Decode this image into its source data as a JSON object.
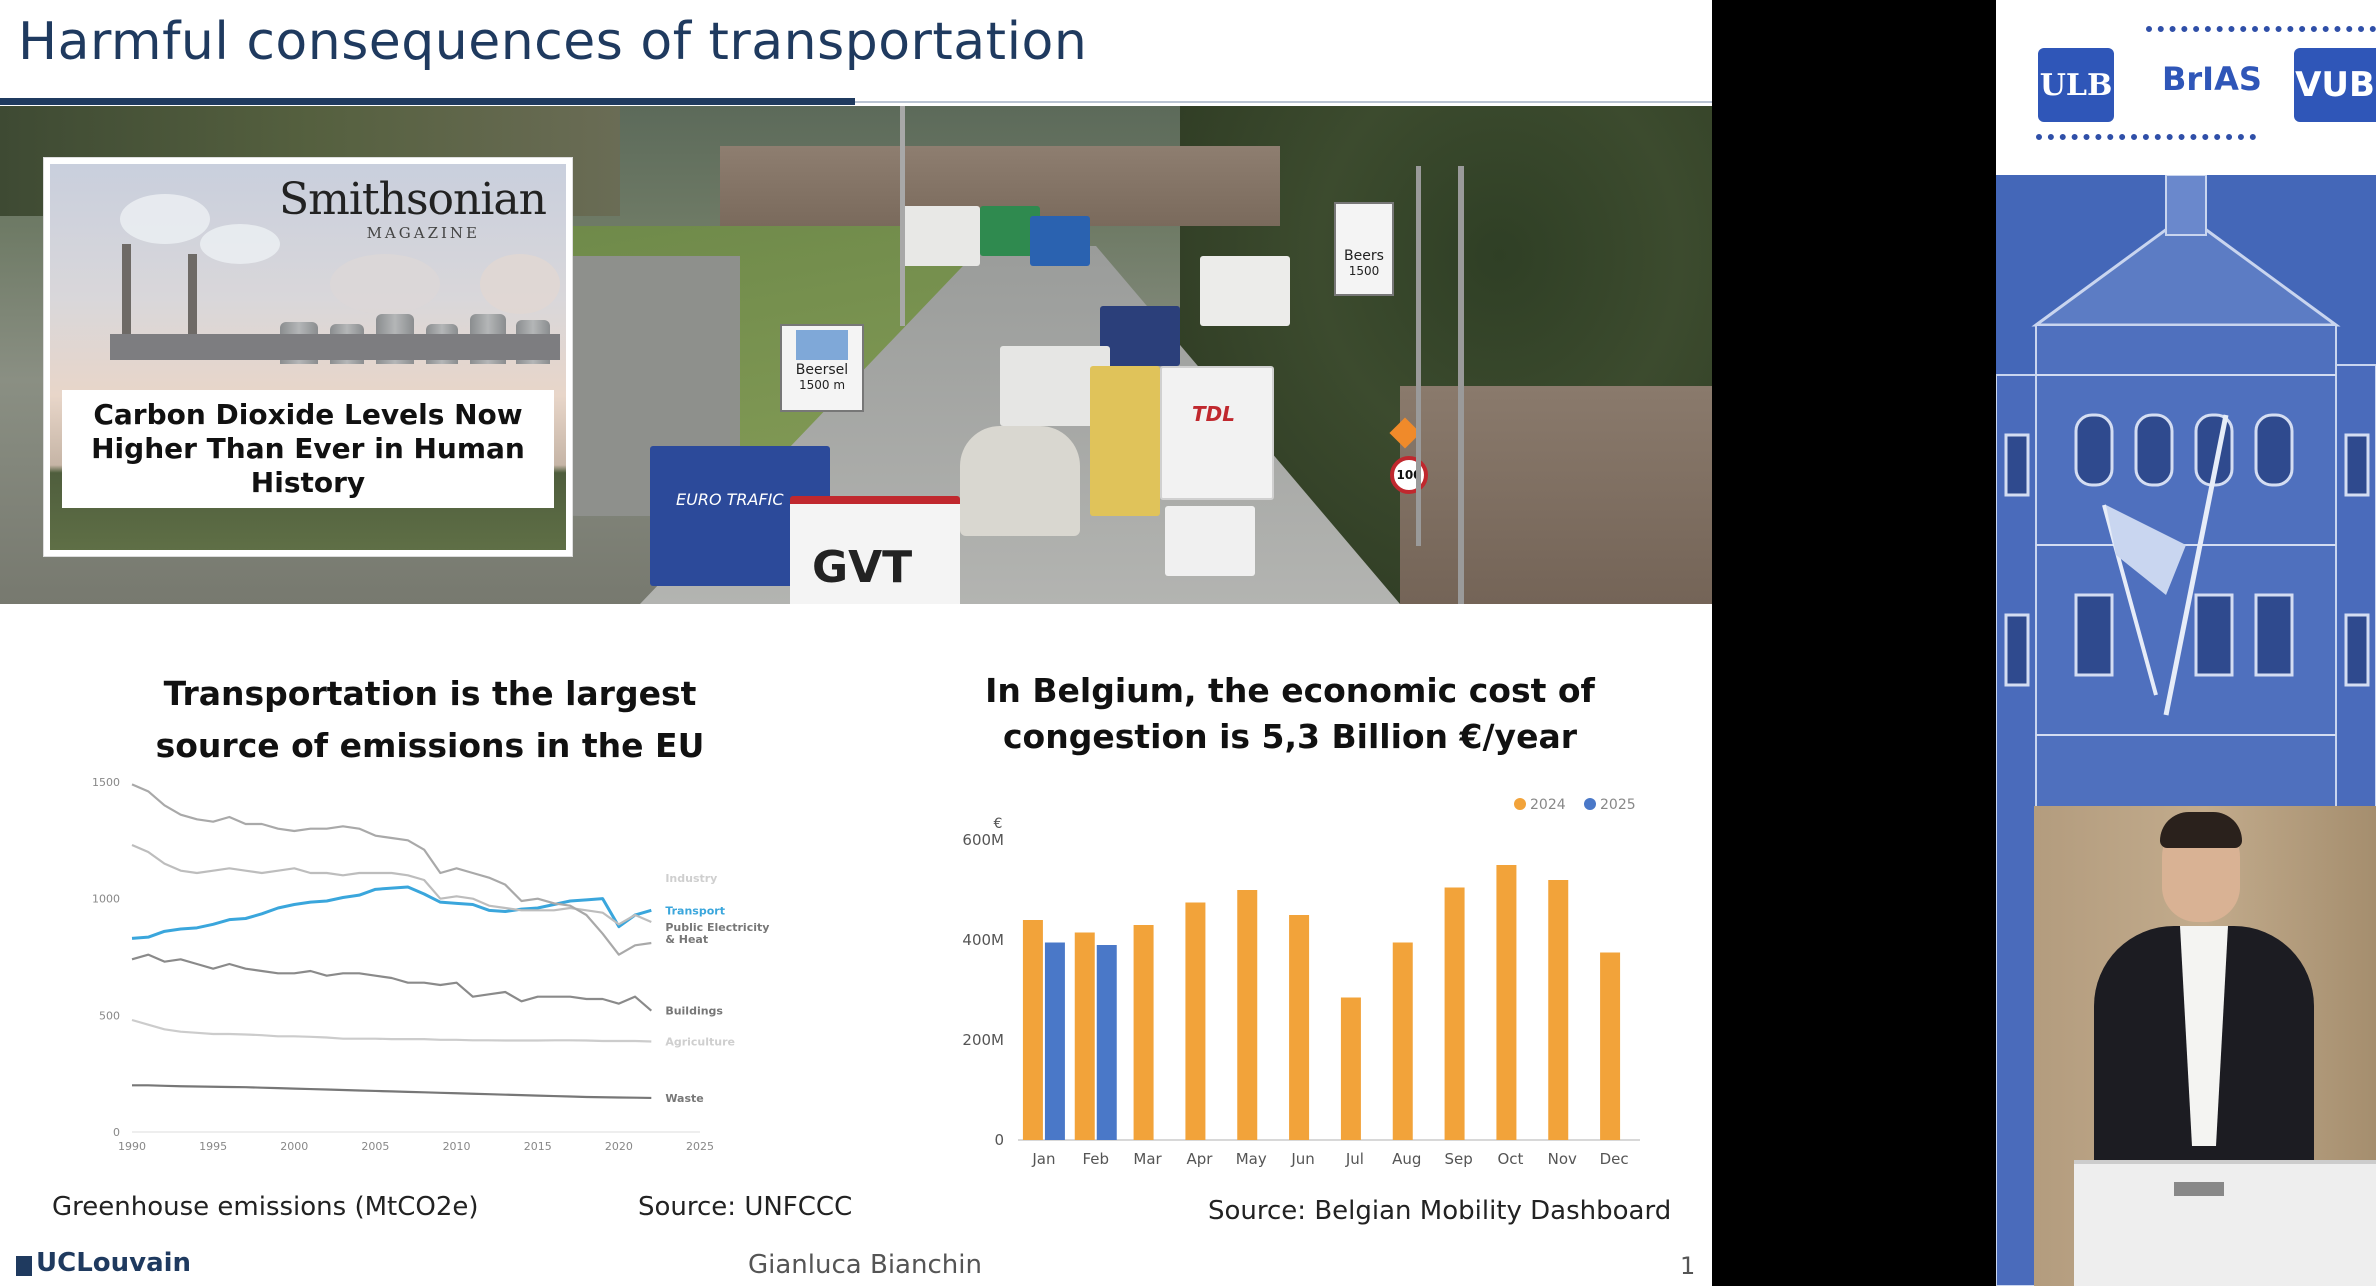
{
  "slide": {
    "title": "Harmful consequences of transportation",
    "article": {
      "publisher": "Smithsonian",
      "publisher_sub": "MAGAZINE",
      "headline": "Carbon Dioxide Levels Now Higher Than Ever in Human History"
    },
    "road_signs": {
      "sign1_line1": "Beersel",
      "sign1_line2": "1500 m",
      "sign2_line1": "Beers",
      "sign2_line2": "1500",
      "speed": "100",
      "truck1": "EURO TRAFIC",
      "truck2": "GVT",
      "truck3": "TDL"
    },
    "left_heading": "Transportation is the largest source of emissions in the EU",
    "right_heading": "In Belgium, the economic cost of congestion is 5,3 Billion €/year",
    "left_caption": "Greenhouse emissions (MtCO2e)",
    "left_source": "Source: UNFCCC",
    "right_source": "Source: Belgian Mobility Dashboard",
    "footer": {
      "institution": "UCLouvain",
      "presenter": "Gianluca Bianchin",
      "page": "1"
    }
  },
  "chart_data": [
    {
      "type": "line",
      "x": [
        1990,
        1991,
        1992,
        1993,
        1994,
        1995,
        1996,
        1997,
        1998,
        1999,
        2000,
        2001,
        2002,
        2003,
        2004,
        2005,
        2006,
        2007,
        2008,
        2009,
        2010,
        2011,
        2012,
        2013,
        2014,
        2015,
        2016,
        2017,
        2018,
        2019,
        2020,
        2021,
        2022
      ],
      "xticks": [
        "1990",
        "1995",
        "2000",
        "2005",
        "2010",
        "2015",
        "2020",
        "2025"
      ],
      "yticks": [
        "0",
        "500",
        "1000",
        "1500"
      ],
      "ylim": [
        0,
        1500
      ],
      "xlim": [
        1990,
        2025
      ],
      "series": [
        {
          "name": "Transport",
          "color": "#3aa6dc",
          "values": [
            830,
            835,
            860,
            870,
            875,
            890,
            910,
            915,
            935,
            960,
            975,
            985,
            990,
            1005,
            1015,
            1040,
            1045,
            1050,
            1020,
            985,
            980,
            975,
            950,
            945,
            955,
            960,
            975,
            990,
            995,
            1000,
            880,
            930,
            950
          ]
        },
        {
          "name": "Industry",
          "color": "#bdbdbd",
          "values": [
            1230,
            1200,
            1150,
            1120,
            1110,
            1120,
            1130,
            1120,
            1110,
            1120,
            1130,
            1110,
            1110,
            1100,
            1110,
            1110,
            1110,
            1100,
            1080,
            1000,
            1010,
            1000,
            970,
            960,
            950,
            950,
            950,
            960,
            950,
            940,
            890,
            930,
            900
          ]
        },
        {
          "name": "Public Electricity & Heat",
          "color": "#a9a9a9",
          "values": [
            1490,
            1460,
            1400,
            1360,
            1340,
            1330,
            1350,
            1320,
            1320,
            1300,
            1290,
            1300,
            1300,
            1310,
            1300,
            1270,
            1260,
            1250,
            1210,
            1110,
            1130,
            1110,
            1090,
            1060,
            990,
            1000,
            980,
            970,
            930,
            850,
            760,
            800,
            810
          ]
        },
        {
          "name": "Buildings",
          "color": "#8a8a8a",
          "values": [
            740,
            760,
            730,
            740,
            720,
            700,
            720,
            700,
            690,
            680,
            680,
            690,
            670,
            680,
            680,
            670,
            660,
            640,
            640,
            630,
            640,
            580,
            590,
            600,
            560,
            580,
            580,
            580,
            570,
            570,
            550,
            580,
            520
          ]
        },
        {
          "name": "Agriculture",
          "color": "#cccccc",
          "values": [
            480,
            460,
            440,
            430,
            425,
            420,
            420,
            418,
            415,
            410,
            410,
            408,
            405,
            400,
            400,
            400,
            398,
            398,
            398,
            395,
            395,
            393,
            393,
            392,
            392,
            392,
            393,
            393,
            392,
            390,
            390,
            390,
            388
          ]
        },
        {
          "name": "Waste",
          "color": "#777777",
          "values": [
            200,
            200,
            198,
            196,
            195,
            194,
            193,
            192,
            190,
            188,
            186,
            184,
            182,
            180,
            178,
            176,
            174,
            172,
            170,
            168,
            166,
            164,
            162,
            160,
            158,
            156,
            154,
            152,
            150,
            149,
            148,
            147,
            146
          ]
        }
      ]
    },
    {
      "type": "bar",
      "categories": [
        "Jan",
        "Feb",
        "Mar",
        "Apr",
        "May",
        "Jun",
        "Jul",
        "Aug",
        "Sep",
        "Oct",
        "Nov",
        "Dec"
      ],
      "yunit": "€",
      "yticks": [
        "0",
        "200M",
        "400M",
        "600M"
      ],
      "ylim": [
        0,
        600
      ],
      "legend_position": "top-right",
      "series": [
        {
          "name": "2024",
          "color": "#f2a33a",
          "values": [
            440,
            415,
            430,
            475,
            500,
            450,
            285,
            395,
            505,
            550,
            520,
            375
          ]
        },
        {
          "name": "2025",
          "color": "#4a78c8",
          "values": [
            395,
            390,
            null,
            null,
            null,
            null,
            null,
            null,
            null,
            null,
            null,
            null
          ]
        }
      ]
    }
  ],
  "side_panel": {
    "logos": [
      "ULB",
      "BrIAS",
      "VUB"
    ]
  }
}
